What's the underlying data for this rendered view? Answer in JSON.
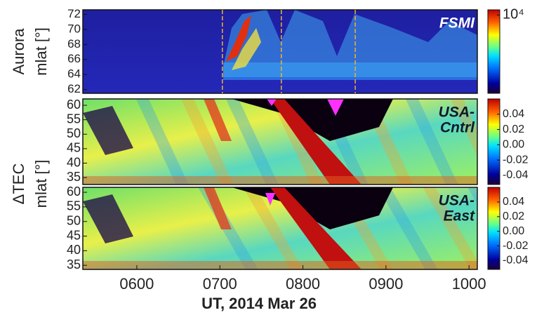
{
  "chart_data": [
    {
      "type": "heatmap",
      "ylabel": [
        "Aurora",
        "mlat [°]"
      ],
      "annotation": [
        "FSMI"
      ],
      "ylim": [
        61.5,
        72.6
      ],
      "yticks": [
        62,
        64,
        66,
        68,
        70,
        72
      ],
      "event_times": [
        7.03,
        7.74,
        8.63
      ],
      "colorbar_lim": [
        1,
        4.2
      ],
      "colorbar_ticks": [
        {
          "value": 4,
          "label": "10⁴"
        }
      ]
    },
    {
      "type": "heatmap",
      "ylabel": [
        "ΔTEC",
        "mlat [°]"
      ],
      "annotation": [
        "USA-",
        "Cntrl"
      ],
      "ylim": [
        32.6,
        62.2
      ],
      "yticks": [
        35,
        40,
        45,
        50,
        55,
        60
      ],
      "colorbar_lim": [
        -0.052,
        0.06
      ],
      "colorbar_ticks": [
        0.04,
        0.02,
        {
          "value": 0,
          "label": "0.00"
        },
        -0.02,
        -0.04
      ]
    },
    {
      "type": "heatmap",
      "annotation": [
        "USA-",
        "East"
      ],
      "ylim": [
        33.6,
        61.7
      ],
      "yticks": [
        35,
        40,
        45,
        50,
        55,
        60
      ],
      "colorbar_lim": [
        -0.052,
        0.06
      ],
      "colorbar_ticks": [
        0.04,
        0.02,
        {
          "value": 0,
          "label": "0.00"
        },
        -0.02,
        -0.04
      ],
      "xlabel": "UT, 2014 Mar 26",
      "xlim": [
        5.35,
        10.1
      ],
      "xticks": [
        {
          "value": 6,
          "label": "0600"
        },
        {
          "value": 7,
          "label": "0700"
        },
        {
          "value": 8,
          "label": "0800"
        },
        {
          "value": 9,
          "label": "0900"
        },
        {
          "value": 10,
          "label": "1000"
        }
      ]
    }
  ]
}
